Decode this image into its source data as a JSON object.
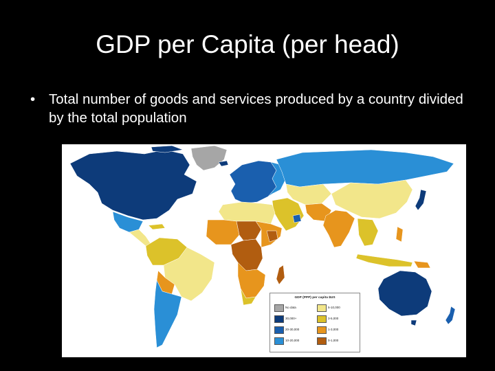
{
  "slide": {
    "title": "GDP per Capita (per head)",
    "bullet_marker": "•",
    "bullet_text": "Total number of goods and services produced by a country divided by the total population"
  },
  "map": {
    "legend": {
      "title": "GDP (PPP) per capita   $US",
      "items": [
        {
          "label": "No data",
          "color": "#a6a6a6"
        },
        {
          "label": "5-10,000",
          "color": "#f2e68a"
        },
        {
          "label": "30,000+",
          "color": "#0d3b7a"
        },
        {
          "label": "3-5,000",
          "color": "#dcc22a"
        },
        {
          "label": "20-30,000",
          "color": "#1a5fae"
        },
        {
          "label": "1-3,000",
          "color": "#e7951d"
        },
        {
          "label": "10-20,000",
          "color": "#2a8fd6"
        },
        {
          "label": "0-1,000",
          "color": "#b15d10"
        }
      ]
    }
  }
}
